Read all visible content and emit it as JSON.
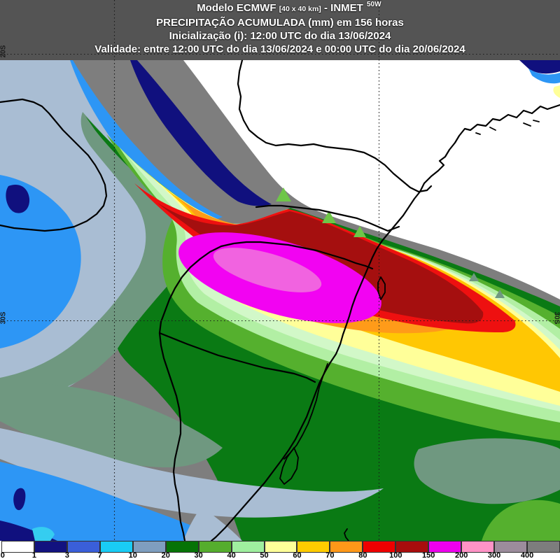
{
  "header": {
    "line1_model": "Modelo ECMWF",
    "line1_res": "[40 x 40 km]",
    "line1_org": "- INMET",
    "line2": "PRECIPITAÇÃO ACUMULADA (mm) em 156 horas",
    "line3": "Inicialização (i): 12:00 UTC do dia 13/06/2024",
    "line4": "Validade: entre 12:00 UTC do dia 13/06/2024 e 00:00 UTC do dia 20/06/2024"
  },
  "map": {
    "labels": {
      "lon_50w": "50W",
      "lat_20s": "20S",
      "lat_30s_left": "30S",
      "lat_30s_right": "30S"
    },
    "band_colors": {
      "land": "#7e7e7e",
      "white": "#ffffff",
      "navy": "#10107e",
      "blue": "#2d96f5",
      "cyan": "#35cdf0",
      "steel": "#a9bdd3",
      "sage": "#6f9880",
      "dkgreen": "#0a7a14",
      "medgreen": "#55b02e",
      "ltgreen": "#b2efa4",
      "palegreen": "#d2f8c8",
      "paleyellow": "#ffff99",
      "gold": "#ffc703",
      "orange": "#ff9b19",
      "red": "#ee1010",
      "dkred": "#a50f0f",
      "magenta": "#f203f2",
      "pink": "#f163e0",
      "triangle": "#6ec648",
      "yellow_sliver": "#ffff99"
    }
  },
  "colorbar": {
    "unit": "mm",
    "ticks": [
      "0",
      "1",
      "3",
      "7",
      "10",
      "20",
      "30",
      "40",
      "50",
      "60",
      "70",
      "80",
      "100",
      "150",
      "200",
      "300",
      "400"
    ],
    "colors": [
      "#ffffff",
      "#12127f",
      "#3a5fd9",
      "#19ccf5",
      "#7f9ebf",
      "#067306",
      "#55ad2d",
      "#9fef9f",
      "#ffff99",
      "#ffcc00",
      "#ff9819",
      "#ee0000",
      "#a80d0d",
      "#ee00ee",
      "#ff93c6",
      "#9c8c9c",
      "#7d7d7d"
    ],
    "values": [
      0,
      1,
      3,
      7,
      10,
      20,
      30,
      40,
      50,
      60,
      70,
      80,
      100,
      150,
      200,
      300,
      400
    ]
  }
}
